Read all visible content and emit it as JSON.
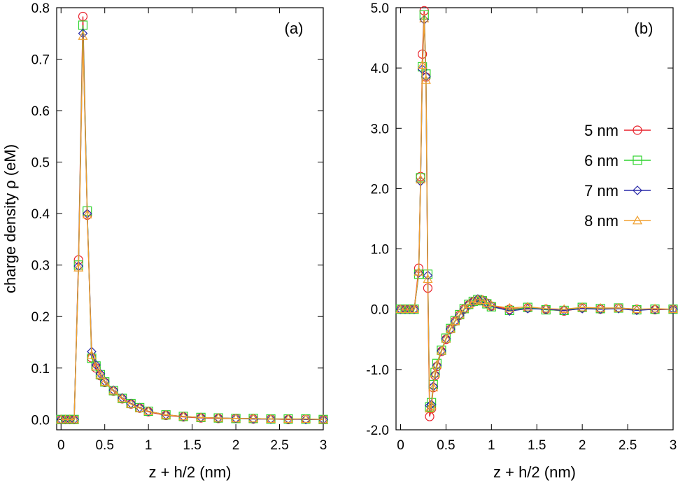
{
  "chart_data": [
    {
      "type": "line",
      "panel_label": "(a)",
      "xlabel": "z + h/2 (nm)",
      "ylabel": "charge density ρ (eM)",
      "xlim": [
        -0.05,
        3.0
      ],
      "ylim": [
        -0.02,
        0.8
      ],
      "xticks": [
        "0",
        "0.5",
        "1",
        "1.5",
        "2",
        "2.5",
        "3"
      ],
      "xtick_values": [
        0,
        0.5,
        1,
        1.5,
        2,
        2.5,
        3
      ],
      "yticks": [
        "0.0",
        "0.1",
        "0.2",
        "0.3",
        "0.4",
        "0.5",
        "0.6",
        "0.7",
        "0.8"
      ],
      "ytick_values": [
        0,
        0.1,
        0.2,
        0.3,
        0.4,
        0.5,
        0.6,
        0.7,
        0.8
      ],
      "series": [
        {
          "name": "5 nm",
          "color": "#e8202a",
          "marker": "circle",
          "x": [
            0,
            0.05,
            0.1,
            0.15,
            0.2,
            0.25,
            0.3,
            0.35,
            0.4,
            0.45,
            0.5,
            0.6,
            0.7,
            0.8,
            0.9,
            1.0,
            1.2,
            1.4,
            1.6,
            1.8,
            2.0,
            2.2,
            2.4,
            2.6,
            2.8,
            3.0
          ],
          "y": [
            0.0,
            0.0,
            0.0,
            0.0,
            0.31,
            0.783,
            0.397,
            0.12,
            0.1,
            0.085,
            0.072,
            0.055,
            0.04,
            0.03,
            0.022,
            0.015,
            0.008,
            0.005,
            0.003,
            0.002,
            0.002,
            0.001,
            0.001,
            0.0,
            0.001,
            0.0
          ]
        },
        {
          "name": "6 nm",
          "color": "#2fd42f",
          "marker": "square",
          "x": [
            0,
            0.05,
            0.1,
            0.15,
            0.2,
            0.25,
            0.3,
            0.35,
            0.4,
            0.45,
            0.5,
            0.6,
            0.7,
            0.8,
            0.9,
            1.0,
            1.2,
            1.4,
            1.6,
            1.8,
            2.0,
            2.2,
            2.4,
            2.6,
            2.8,
            3.0
          ],
          "y": [
            0.0,
            0.0,
            0.0,
            0.0,
            0.3,
            0.766,
            0.405,
            0.119,
            0.104,
            0.087,
            0.073,
            0.056,
            0.041,
            0.031,
            0.023,
            0.016,
            0.009,
            0.006,
            0.004,
            0.003,
            0.002,
            0.002,
            0.001,
            0.001,
            0.001,
            0.0
          ]
        },
        {
          "name": "7 nm",
          "color": "#2a2aa8",
          "marker": "diamond",
          "x": [
            0,
            0.05,
            0.1,
            0.15,
            0.2,
            0.25,
            0.3,
            0.35,
            0.4,
            0.45,
            0.5,
            0.6,
            0.7,
            0.8,
            0.9,
            1.0,
            1.2,
            1.4,
            1.6,
            1.8,
            2.0,
            2.2,
            2.4,
            2.6,
            2.8,
            3.0
          ],
          "y": [
            0.0,
            0.0,
            0.0,
            0.0,
            0.298,
            0.75,
            0.4,
            0.132,
            0.106,
            0.089,
            0.074,
            0.057,
            0.042,
            0.031,
            0.023,
            0.016,
            0.009,
            0.006,
            0.004,
            0.003,
            0.002,
            0.001,
            0.001,
            0.001,
            0.0,
            0.0
          ]
        },
        {
          "name": "8 nm",
          "color": "#f0a030",
          "marker": "triangle",
          "x": [
            0,
            0.05,
            0.1,
            0.15,
            0.2,
            0.25,
            0.3,
            0.35,
            0.4,
            0.45,
            0.5,
            0.6,
            0.7,
            0.8,
            0.9,
            1.0,
            1.2,
            1.4,
            1.6,
            1.8,
            2.0,
            2.2,
            2.4,
            2.6,
            2.8,
            3.0
          ],
          "y": [
            0.0,
            0.0,
            0.0,
            0.0,
            0.295,
            0.745,
            0.398,
            0.125,
            0.103,
            0.087,
            0.073,
            0.056,
            0.041,
            0.03,
            0.022,
            0.016,
            0.009,
            0.006,
            0.004,
            0.003,
            0.002,
            0.002,
            0.001,
            0.001,
            0.001,
            0.0
          ]
        }
      ]
    },
    {
      "type": "line",
      "panel_label": "(b)",
      "xlabel": "z + h/2 (nm)",
      "ylabel": "",
      "xlim": [
        -0.05,
        3.0
      ],
      "ylim": [
        -2.0,
        5.0
      ],
      "xticks": [
        "0",
        "0.5",
        "1",
        "1.5",
        "2",
        "2.5",
        "3"
      ],
      "xtick_values": [
        0,
        0.5,
        1,
        1.5,
        2,
        2.5,
        3
      ],
      "yticks": [
        "-2.0",
        "-1.0",
        "0.0",
        "1.0",
        "2.0",
        "3.0",
        "4.0",
        "5.0"
      ],
      "ytick_values": [
        -2,
        -1,
        0,
        1,
        2,
        3,
        4,
        5
      ],
      "legend_position": "right",
      "series": [
        {
          "name": "5 nm",
          "color": "#e8202a",
          "marker": "circle",
          "x": [
            0,
            0.05,
            0.1,
            0.15,
            0.2,
            0.22,
            0.24,
            0.26,
            0.28,
            0.3,
            0.32,
            0.34,
            0.36,
            0.38,
            0.4,
            0.45,
            0.5,
            0.55,
            0.6,
            0.65,
            0.7,
            0.75,
            0.8,
            0.85,
            0.9,
            0.95,
            1.0,
            1.2,
            1.4,
            1.6,
            1.8,
            2.0,
            2.2,
            2.4,
            2.6,
            2.8,
            3.0
          ],
          "y": [
            0.0,
            0.0,
            0.0,
            0.0,
            0.68,
            2.2,
            4.23,
            4.95,
            3.85,
            0.35,
            -1.78,
            -1.65,
            -1.3,
            -1.1,
            -0.95,
            -0.7,
            -0.5,
            -0.33,
            -0.2,
            -0.1,
            0.0,
            0.07,
            0.12,
            0.15,
            0.15,
            0.1,
            0.05,
            0.0,
            0.02,
            0.0,
            -0.03,
            0.02,
            0.0,
            0.02,
            0.0,
            -0.01,
            0.0
          ]
        },
        {
          "name": "6 nm",
          "color": "#2fd42f",
          "marker": "square",
          "x": [
            0,
            0.05,
            0.1,
            0.15,
            0.2,
            0.22,
            0.24,
            0.26,
            0.28,
            0.3,
            0.32,
            0.34,
            0.36,
            0.38,
            0.4,
            0.45,
            0.5,
            0.55,
            0.6,
            0.65,
            0.7,
            0.75,
            0.8,
            0.85,
            0.9,
            0.95,
            1.0,
            1.2,
            1.4,
            1.6,
            1.8,
            2.0,
            2.2,
            2.4,
            2.6,
            2.8,
            3.0
          ],
          "y": [
            0.0,
            0.0,
            0.0,
            0.0,
            0.58,
            2.18,
            4.02,
            4.88,
            3.9,
            0.58,
            -1.62,
            -1.55,
            -1.25,
            -1.05,
            -0.9,
            -0.68,
            -0.48,
            -0.32,
            -0.19,
            -0.09,
            0.01,
            0.08,
            0.13,
            0.16,
            0.14,
            0.09,
            0.04,
            -0.02,
            0.03,
            -0.01,
            -0.02,
            0.03,
            0.01,
            0.02,
            -0.01,
            0.0,
            0.0
          ]
        },
        {
          "name": "7 nm",
          "color": "#2a2aa8",
          "marker": "diamond",
          "x": [
            0,
            0.05,
            0.1,
            0.15,
            0.2,
            0.22,
            0.24,
            0.26,
            0.28,
            0.3,
            0.32,
            0.34,
            0.36,
            0.38,
            0.4,
            0.45,
            0.5,
            0.55,
            0.6,
            0.65,
            0.7,
            0.75,
            0.8,
            0.85,
            0.9,
            0.95,
            1.0,
            1.2,
            1.4,
            1.6,
            1.8,
            2.0,
            2.2,
            2.4,
            2.6,
            2.8,
            3.0
          ],
          "y": [
            0.0,
            0.0,
            0.0,
            0.0,
            0.6,
            2.12,
            3.98,
            4.8,
            3.86,
            0.56,
            -1.6,
            -1.58,
            -1.28,
            -1.08,
            -0.93,
            -0.69,
            -0.49,
            -0.33,
            -0.2,
            -0.1,
            0.0,
            0.08,
            0.13,
            0.17,
            0.15,
            0.1,
            0.05,
            -0.03,
            0.01,
            0.0,
            -0.02,
            0.01,
            0.0,
            0.01,
            -0.02,
            0.0,
            0.0
          ]
        },
        {
          "name": "8 nm",
          "color": "#f0a030",
          "marker": "triangle",
          "x": [
            0,
            0.05,
            0.1,
            0.15,
            0.2,
            0.22,
            0.24,
            0.26,
            0.28,
            0.3,
            0.32,
            0.34,
            0.36,
            0.38,
            0.4,
            0.45,
            0.5,
            0.55,
            0.6,
            0.65,
            0.7,
            0.75,
            0.8,
            0.85,
            0.9,
            0.95,
            1.0,
            1.2,
            1.4,
            1.6,
            1.8,
            2.0,
            2.2,
            2.4,
            2.6,
            2.8,
            3.0
          ],
          "y": [
            0.0,
            0.0,
            0.0,
            0.0,
            0.62,
            2.15,
            4.05,
            4.82,
            3.8,
            0.5,
            -1.65,
            -1.6,
            -1.3,
            -1.07,
            -0.92,
            -0.69,
            -0.49,
            -0.33,
            -0.2,
            -0.09,
            0.01,
            0.08,
            0.13,
            0.16,
            0.15,
            0.1,
            0.06,
            0.02,
            0.04,
            0.01,
            0.0,
            0.03,
            0.02,
            0.02,
            0.0,
            0.01,
            0.0
          ]
        }
      ]
    }
  ]
}
